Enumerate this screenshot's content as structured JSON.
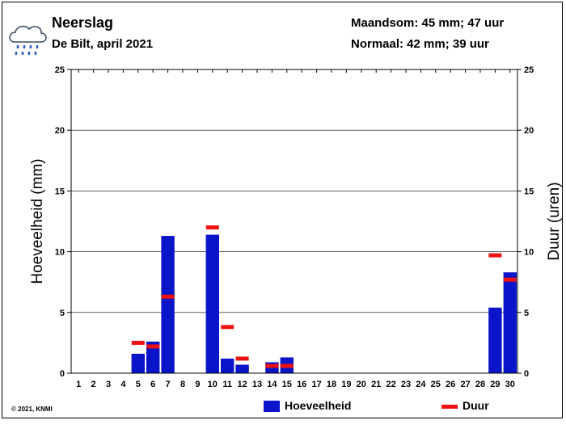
{
  "header": {
    "title": "Neerslag",
    "subtitle": "De Bilt, april 2021",
    "month_sum": "Maandsom: 45 mm; 47 uur",
    "normal": "Normaal: 42 mm; 39 uur"
  },
  "legend": {
    "amount_label": "Hoeveelheid",
    "duration_label": "Duur"
  },
  "copyright": "© 2021, KNMI",
  "icon": "rain-cloud-icon",
  "colors": {
    "bar": "#0a14c8",
    "duration": "#ee1111",
    "grid": "#000000"
  },
  "chart_data": {
    "type": "bar",
    "categories": [
      "1",
      "2",
      "3",
      "4",
      "5",
      "6",
      "7",
      "8",
      "9",
      "10",
      "11",
      "12",
      "13",
      "14",
      "15",
      "16",
      "17",
      "18",
      "19",
      "20",
      "21",
      "22",
      "23",
      "24",
      "25",
      "26",
      "27",
      "28",
      "29",
      "30"
    ],
    "series": [
      {
        "name": "Hoeveelheid",
        "axis": "left",
        "type": "bar",
        "values": [
          0,
          0,
          0,
          0,
          1.6,
          2.6,
          11.3,
          0,
          0,
          11.4,
          1.2,
          0.7,
          0,
          0.9,
          1.3,
          0,
          0,
          0,
          0,
          0,
          0,
          0,
          0,
          0,
          0,
          0,
          0,
          0,
          5.4,
          8.3
        ]
      },
      {
        "name": "Duur",
        "axis": "right",
        "type": "marker",
        "values": [
          null,
          null,
          null,
          null,
          2.5,
          2.2,
          6.3,
          null,
          null,
          12.0,
          3.8,
          1.2,
          null,
          0.6,
          0.6,
          null,
          null,
          null,
          null,
          null,
          null,
          null,
          null,
          null,
          null,
          null,
          null,
          null,
          9.7,
          7.7
        ]
      }
    ],
    "ylabel": "Hoeveelheid (mm)",
    "y2label": "Duur (uren)",
    "ylim": [
      0,
      25
    ],
    "y2lim": [
      0,
      25
    ],
    "yticks": [
      0,
      5,
      10,
      15,
      20,
      25
    ],
    "grid": true,
    "legend_position": "bottom"
  }
}
